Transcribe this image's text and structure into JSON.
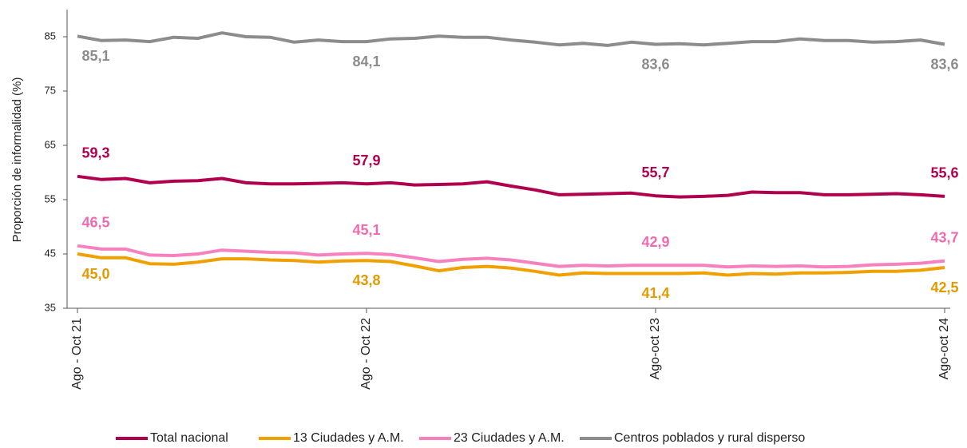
{
  "chart_data": {
    "type": "line",
    "y_label": "Proporción de informalidad (%)",
    "categories": [
      "Ago - Oct 21",
      null,
      null,
      null,
      null,
      null,
      null,
      null,
      null,
      null,
      null,
      null,
      "Ago - Oct 22",
      null,
      null,
      null,
      null,
      null,
      null,
      null,
      null,
      null,
      null,
      null,
      "Ago-oct 23",
      null,
      null,
      null,
      null,
      null,
      null,
      null,
      null,
      null,
      null,
      null,
      "Ago-oct 24"
    ],
    "ylim": [
      35,
      90
    ],
    "yticks": [
      35,
      45,
      55,
      65,
      75,
      85
    ],
    "grid": false,
    "legend": "bottom",
    "series": [
      {
        "name": "Total nacional",
        "color": "#b0004e",
        "label_color": "#b0004e",
        "label_side": "above",
        "values": [
          59.3,
          58.7,
          58.9,
          58.1,
          58.4,
          58.5,
          58.9,
          58.1,
          57.9,
          57.9,
          58.0,
          58.1,
          57.9,
          58.1,
          57.7,
          57.8,
          57.9,
          58.3,
          57.5,
          56.8,
          55.9,
          56.0,
          56.1,
          56.2,
          55.7,
          55.5,
          55.6,
          55.8,
          56.4,
          56.3,
          56.3,
          55.9,
          55.9,
          56.0,
          56.1,
          55.9,
          55.6
        ],
        "value_labels": [
          "59,3",
          null,
          null,
          null,
          null,
          null,
          null,
          null,
          null,
          null,
          null,
          null,
          "57,9",
          null,
          null,
          null,
          null,
          null,
          null,
          null,
          null,
          null,
          null,
          null,
          "55,7",
          null,
          null,
          null,
          null,
          null,
          null,
          null,
          null,
          null,
          null,
          null,
          "55,6"
        ]
      },
      {
        "name": "13 Ciudades y A.M.",
        "color": "#f0a000",
        "label_color": "#e39a00",
        "label_side": "below",
        "values": [
          45.0,
          44.3,
          44.3,
          43.2,
          43.1,
          43.5,
          44.1,
          44.1,
          43.9,
          43.8,
          43.5,
          43.7,
          43.8,
          43.6,
          42.8,
          41.9,
          42.5,
          42.7,
          42.4,
          41.8,
          41.1,
          41.5,
          41.4,
          41.4,
          41.4,
          41.4,
          41.5,
          41.1,
          41.4,
          41.3,
          41.5,
          41.5,
          41.6,
          41.8,
          41.8,
          42.0,
          42.5
        ],
        "value_labels": [
          "45,0",
          null,
          null,
          null,
          null,
          null,
          null,
          null,
          null,
          null,
          null,
          null,
          "43,8",
          null,
          null,
          null,
          null,
          null,
          null,
          null,
          null,
          null,
          null,
          null,
          "41,4",
          null,
          null,
          null,
          null,
          null,
          null,
          null,
          null,
          null,
          null,
          null,
          "42,5"
        ]
      },
      {
        "name": "23 Ciudades y A.M.",
        "color": "#f781bf",
        "label_color": "#f06aae",
        "label_side": "above",
        "values": [
          46.5,
          45.9,
          45.9,
          44.8,
          44.7,
          45.0,
          45.7,
          45.5,
          45.3,
          45.2,
          44.8,
          45.0,
          45.1,
          44.9,
          44.3,
          43.6,
          44.0,
          44.2,
          43.9,
          43.3,
          42.7,
          42.9,
          42.8,
          42.9,
          42.9,
          42.9,
          42.9,
          42.6,
          42.8,
          42.7,
          42.8,
          42.6,
          42.7,
          43.0,
          43.1,
          43.3,
          43.7
        ],
        "value_labels": [
          "46,5",
          null,
          null,
          null,
          null,
          null,
          null,
          null,
          null,
          null,
          null,
          null,
          "45,1",
          null,
          null,
          null,
          null,
          null,
          null,
          null,
          null,
          null,
          null,
          null,
          "42,9",
          null,
          null,
          null,
          null,
          null,
          null,
          null,
          null,
          null,
          null,
          null,
          "43,7"
        ]
      },
      {
        "name": "Centros poblados y rural disperso",
        "color": "#8c8c8c",
        "label_color": "#8c8c8c",
        "label_side": "below",
        "values": [
          85.1,
          84.3,
          84.4,
          84.1,
          84.9,
          84.7,
          85.7,
          85.0,
          84.9,
          84.0,
          84.4,
          84.1,
          84.1,
          84.6,
          84.7,
          85.1,
          84.9,
          84.9,
          84.4,
          84.0,
          83.5,
          83.8,
          83.4,
          84.0,
          83.6,
          83.7,
          83.5,
          83.8,
          84.1,
          84.1,
          84.6,
          84.3,
          84.3,
          84.0,
          84.1,
          84.4,
          83.6
        ],
        "value_labels": [
          "85,1",
          null,
          null,
          null,
          null,
          null,
          null,
          null,
          null,
          null,
          null,
          null,
          "84,1",
          null,
          null,
          null,
          null,
          null,
          null,
          null,
          null,
          null,
          null,
          null,
          "83,6",
          null,
          null,
          null,
          null,
          null,
          null,
          null,
          null,
          null,
          null,
          null,
          "83,6"
        ]
      }
    ]
  }
}
